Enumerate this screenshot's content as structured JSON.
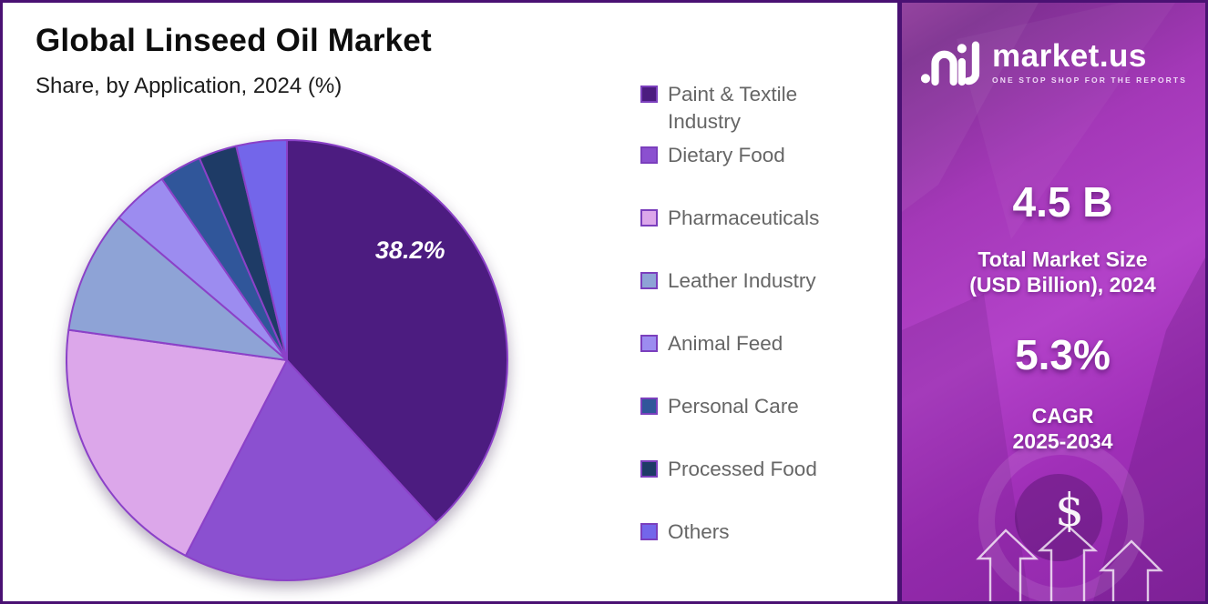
{
  "header": {
    "title": "Global Linseed Oil Market",
    "subtitle": "Share, by Application, 2024 (%)"
  },
  "chart_data": {
    "type": "pie",
    "title": "Global Linseed Oil Market",
    "subtitle": "Share, by Application, 2024 (%)",
    "unit": "%",
    "legend_position": "right",
    "start_angle_deg": 0,
    "direction": "clockwise",
    "stroke_color": "#8b41c8",
    "slices": [
      {
        "label": "Paint & Textile Industry",
        "value": 38.2,
        "color": "#4c1c80",
        "data_label": "38.2%"
      },
      {
        "label": "Dietary Food",
        "value": 19.4,
        "color": "#8b50d0",
        "data_label": ""
      },
      {
        "label": "Pharmaceuticals",
        "value": 19.6,
        "color": "#dca7ea",
        "data_label": ""
      },
      {
        "label": "Leather Industry",
        "value": 9.0,
        "color": "#8ea3d6",
        "data_label": ""
      },
      {
        "label": "Animal Feed",
        "value": 4.2,
        "color": "#9c8cf0",
        "data_label": ""
      },
      {
        "label": "Personal Care",
        "value": 3.1,
        "color": "#30569a",
        "data_label": ""
      },
      {
        "label": "Processed Food",
        "value": 2.8,
        "color": "#1e3b66",
        "data_label": ""
      },
      {
        "label": "Others",
        "value": 3.7,
        "color": "#7366ea",
        "data_label": ""
      }
    ]
  },
  "sidebar": {
    "logo_text": "market.us",
    "logo_tagline": "ONE STOP SHOP FOR THE REPORTS",
    "stat1_value": "4.5 B",
    "stat1_label_line1": "Total Market Size",
    "stat1_label_line2": "(USD Billion), 2024",
    "stat2_value": "5.3%",
    "stat2_label_line1": "CAGR",
    "stat2_label_line2": "2025-2034",
    "dollar_symbol": "$",
    "background_top": "#8f3a9a",
    "background_mid": "#b342c9",
    "background_bottom": "#8c27a6",
    "frame_border_color": "#4a1173"
  }
}
